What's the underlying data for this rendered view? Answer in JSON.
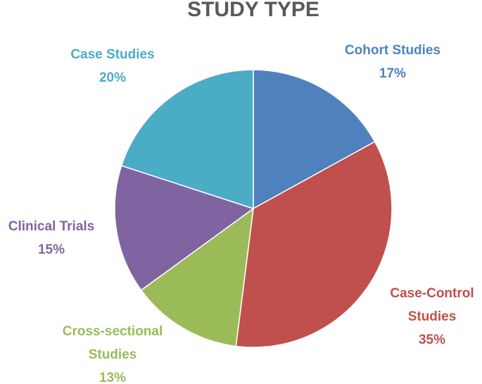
{
  "chart_data": {
    "type": "pie",
    "title": "STUDY TYPE",
    "slices": [
      {
        "label_lines": [
          "Cohort Studies"
        ],
        "percent_label": "17%",
        "value": 17,
        "color": "#4F81BD"
      },
      {
        "label_lines": [
          "Case-Control",
          "Studies"
        ],
        "percent_label": "35%",
        "value": 35,
        "color": "#C0504D"
      },
      {
        "label_lines": [
          "Cross-sectional",
          "Studies"
        ],
        "percent_label": "13%",
        "value": 13,
        "color": "#9BBB59"
      },
      {
        "label_lines": [
          "Clinical Trials"
        ],
        "percent_label": "15%",
        "value": 15,
        "color": "#8064A2"
      },
      {
        "label_lines": [
          "Case Studies"
        ],
        "percent_label": "20%",
        "value": 20,
        "color": "#4BACC6"
      }
    ],
    "start_angle": "12 o'clock",
    "direction": "clockwise",
    "legend": "none",
    "data_labels": "outside"
  }
}
